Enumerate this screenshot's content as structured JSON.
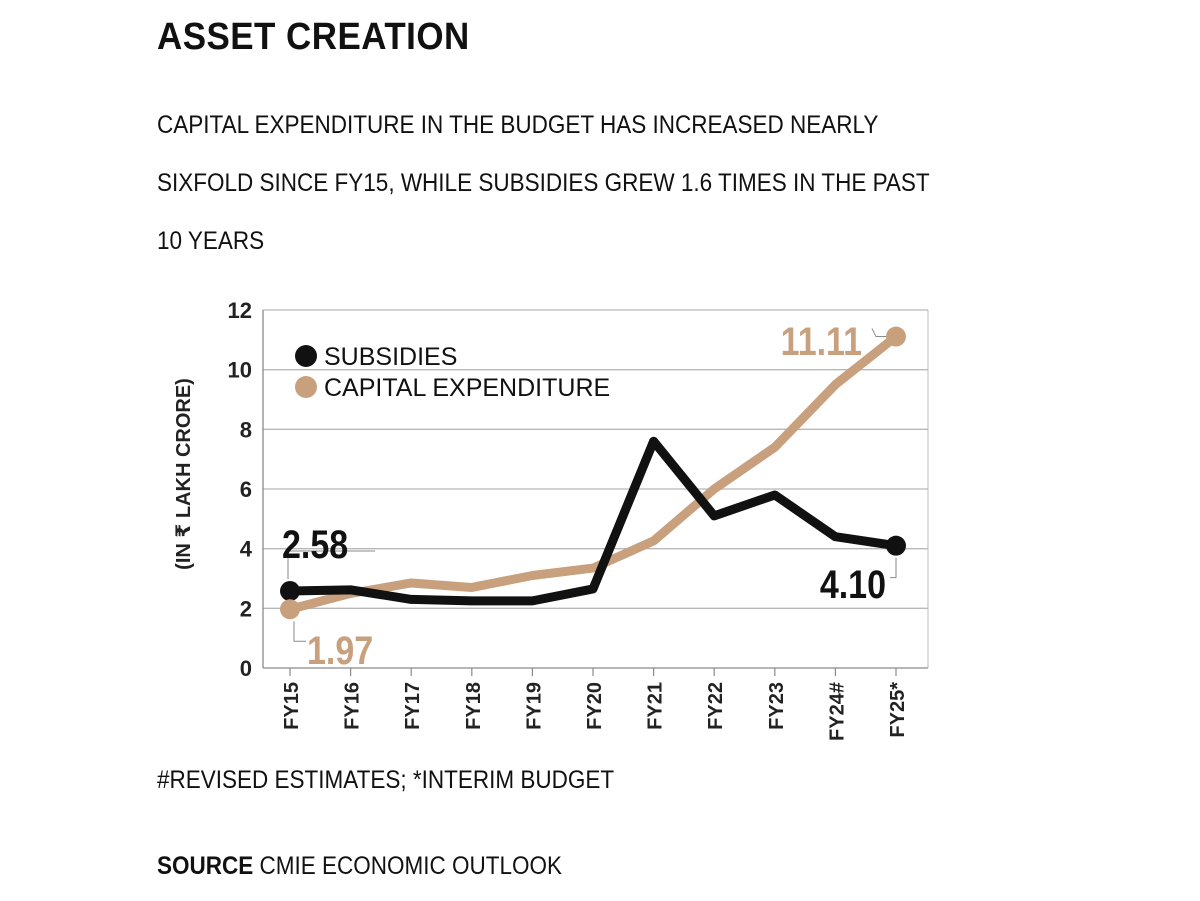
{
  "header": {
    "title": "ASSET CREATION",
    "subtitle": "CAPITAL EXPENDITURE IN THE BUDGET HAS INCREASED NEARLY\nSIXFOLD SINCE FY15, WHILE SUBSIDIES GREW 1.6 TIMES IN THE PAST\n10 YEARS"
  },
  "footer": {
    "note": "#REVISED ESTIMATES; *INTERIM BUDGET",
    "source_label": "SOURCE",
    "source_text": "CMIE ECONOMIC OUTLOOK"
  },
  "colors": {
    "subsidies": "#111111",
    "capex": "#c9a07d",
    "grid": "#b8b8b8",
    "axis": "#8a8a8a"
  },
  "chart_data": {
    "type": "line",
    "categories": [
      "FY15",
      "FY16",
      "FY17",
      "FY18",
      "FY19",
      "FY20",
      "FY21",
      "FY22",
      "FY23",
      "FY24#",
      "FY25*"
    ],
    "series": [
      {
        "name": "SUBSIDIES",
        "values": [
          2.58,
          2.62,
          2.3,
          2.25,
          2.25,
          2.65,
          7.6,
          5.1,
          5.8,
          4.4,
          4.1
        ]
      },
      {
        "name": "CAPITAL EXPENDITURE",
        "values": [
          1.97,
          2.5,
          2.85,
          2.7,
          3.1,
          3.35,
          4.26,
          6.0,
          7.4,
          9.5,
          11.11
        ]
      }
    ],
    "annotations": [
      {
        "series": 0,
        "index": 0,
        "label": "2.58"
      },
      {
        "series": 1,
        "index": 0,
        "label": "1.97"
      },
      {
        "series": 0,
        "index": 10,
        "label": "4.10"
      },
      {
        "series": 1,
        "index": 10,
        "label": "11.11"
      }
    ],
    "ylabel": "(IN ₹ LAKH CRORE)",
    "yticks": [
      0,
      2,
      4,
      6,
      8,
      10,
      12
    ],
    "ylim": [
      0,
      12
    ],
    "legend_position": "top-left",
    "grid": true
  }
}
